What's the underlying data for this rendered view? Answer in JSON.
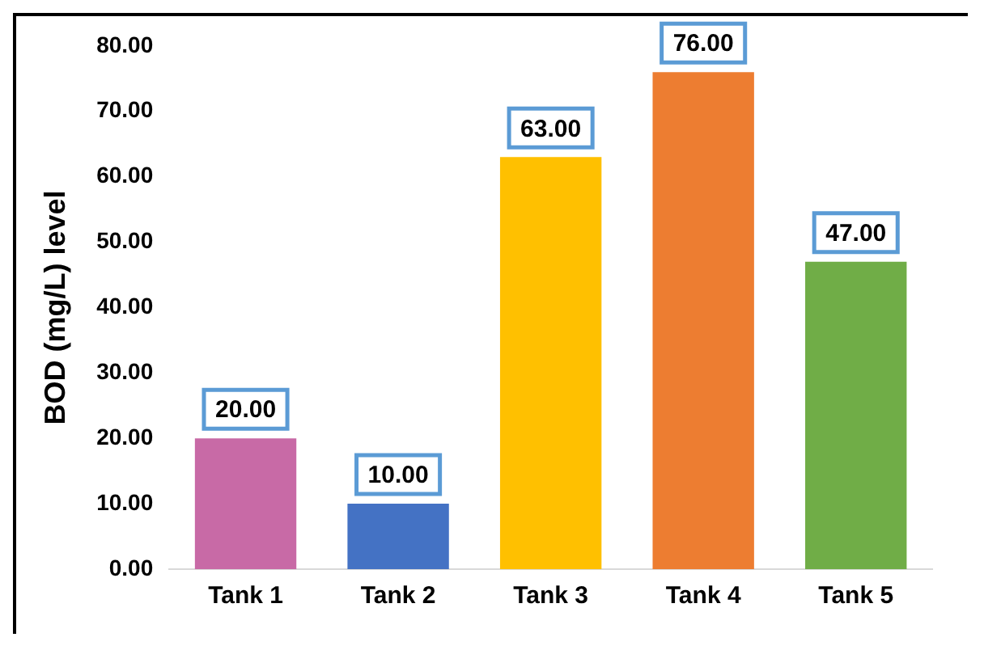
{
  "chart_data": {
    "type": "bar",
    "ylabel": "BOD (mg/L) level",
    "categories": [
      "Tank 1",
      "Tank 2",
      "Tank 3",
      "Tank 4",
      "Tank 5"
    ],
    "values": [
      20,
      10,
      63,
      76,
      47
    ],
    "colors": [
      "#c86aa6",
      "#4472c4",
      "#ffc000",
      "#ed7d31",
      "#70ad47"
    ],
    "value_labels": [
      "20.00",
      "10.00",
      "63.00",
      "76.00",
      "47.00"
    ],
    "ylim": [
      0,
      80
    ],
    "yticks": [
      {
        "value": 0,
        "label": "0.00"
      },
      {
        "value": 10,
        "label": "10.00"
      },
      {
        "value": 20,
        "label": "20.00"
      },
      {
        "value": 30,
        "label": "30.00"
      },
      {
        "value": 40,
        "label": "40.00"
      },
      {
        "value": 50,
        "label": "50.00"
      },
      {
        "value": 60,
        "label": "60.00"
      },
      {
        "value": 70,
        "label": "70.00"
      },
      {
        "value": 80,
        "label": "80.00"
      }
    ],
    "grid": false,
    "legend": false
  }
}
